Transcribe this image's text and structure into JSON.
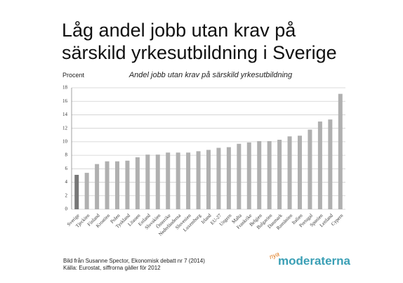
{
  "slide_title": [
    "Låg andel jobb utan krav på",
    "särskild yrkesutbildning i Sverige"
  ],
  "chart_data": {
    "type": "bar",
    "title": "Andel jobb utan krav på särskild yrkesutbildning",
    "y_label": "Procent",
    "categories": [
      "Sverige",
      "Tjeckien",
      "Finland",
      "Kroatien",
      "Polen",
      "Tyskland",
      "Litauen",
      "Estland",
      "Slovakien",
      "Österrike",
      "Nederländerna",
      "Slovenien",
      "Luxemburg",
      "Irland",
      "EU-27",
      "Ungern",
      "Malta",
      "Frankrike",
      "Belgien",
      "Bulgarien",
      "Danmark",
      "Rumänien",
      "Italien",
      "Portugal",
      "Spanien",
      "Lettland",
      "Cypern"
    ],
    "values": [
      5.1,
      5.4,
      6.7,
      7.1,
      7.1,
      7.2,
      7.7,
      8.1,
      8.1,
      8.4,
      8.4,
      8.4,
      8.6,
      8.8,
      9.1,
      9.2,
      9.7,
      9.9,
      10.1,
      10.1,
      10.3,
      10.8,
      10.9,
      11.8,
      13.0,
      13.3,
      17.1
    ],
    "colors": [
      "#777777",
      "#b0b0b0",
      "#b0b0b0",
      "#b0b0b0",
      "#b0b0b0",
      "#b0b0b0",
      "#b0b0b0",
      "#b0b0b0",
      "#b0b0b0",
      "#b0b0b0",
      "#b0b0b0",
      "#b0b0b0",
      "#b0b0b0",
      "#b0b0b0",
      "#b0b0b0",
      "#b0b0b0",
      "#b0b0b0",
      "#b0b0b0",
      "#b0b0b0",
      "#b0b0b0",
      "#b0b0b0",
      "#b0b0b0",
      "#b0b0b0",
      "#b0b0b0",
      "#b0b0b0",
      "#b0b0b0",
      "#b0b0b0"
    ],
    "ylim": [
      0,
      18
    ],
    "yticks": [
      0,
      2,
      4,
      6,
      8,
      10,
      12,
      14,
      16,
      18
    ],
    "grid": true
  },
  "footer": [
    "Bild från Susanne Spector, Ekonomisk debatt nr 7 (2014)",
    "Källa: Eurostat, siffrorna gäller för 2012"
  ],
  "logo": {
    "prefix": "nya",
    "name": "moderaterna"
  }
}
